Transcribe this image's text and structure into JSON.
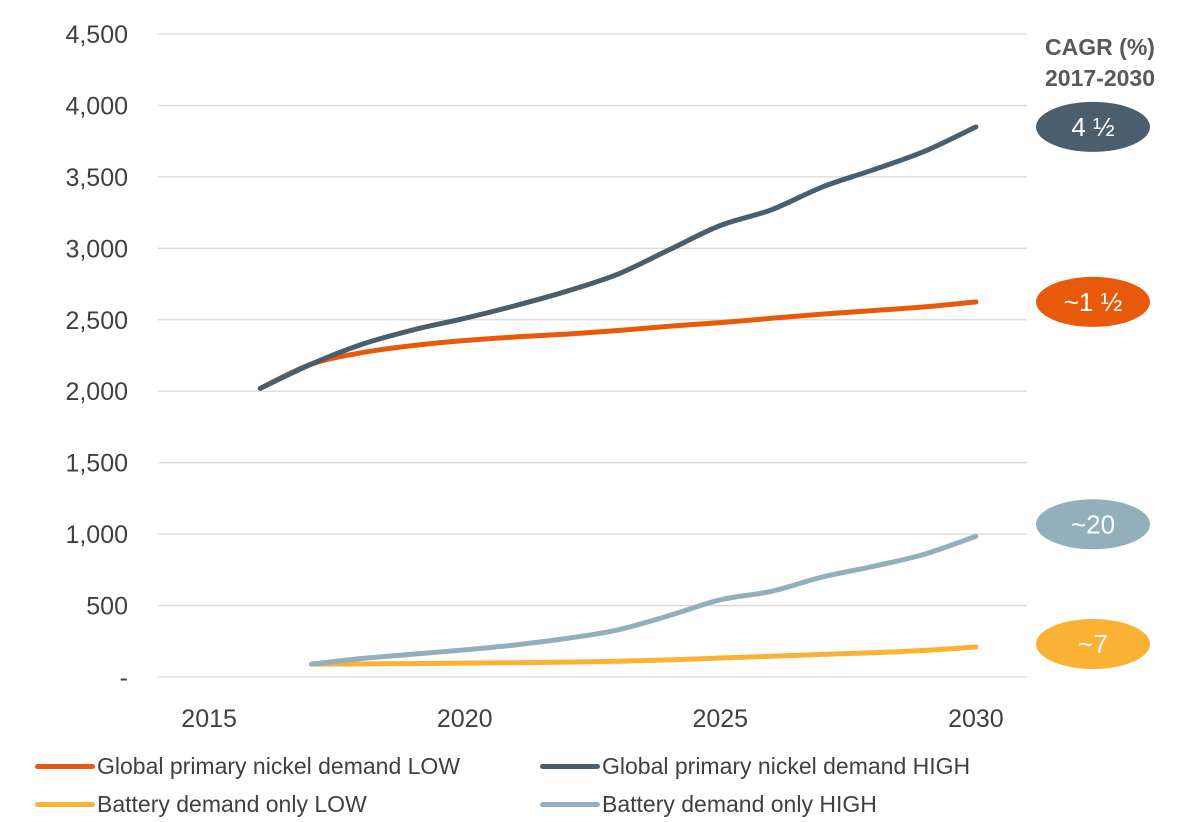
{
  "chart_data": {
    "type": "line",
    "xlim": [
      2014,
      2031
    ],
    "ylim": [
      0,
      4500
    ],
    "x_ticks": [
      "2015",
      "2020",
      "2025",
      "2030"
    ],
    "y_ticks": [
      "-",
      "500",
      "1,000",
      "1,500",
      "2,000",
      "2,500",
      "3,000",
      "3,500",
      "4,000",
      "4,500"
    ],
    "grid": true,
    "legend_position": "bottom",
    "cagr_title": [
      "CAGR (%)",
      "2017-2030"
    ],
    "series": [
      {
        "name": "Global primary nickel demand LOW",
        "color": "#E8590C",
        "x": [
          2016,
          2017,
          2018,
          2019,
          2020,
          2021,
          2022,
          2023,
          2024,
          2025,
          2026,
          2027,
          2028,
          2029,
          2030
        ],
        "y": [
          2020,
          2190,
          2270,
          2320,
          2355,
          2380,
          2400,
          2425,
          2455,
          2480,
          2510,
          2540,
          2565,
          2590,
          2625
        ],
        "cagr": "~1 ½"
      },
      {
        "name": "Global primary nickel demand HIGH",
        "color": "#4A5E6D",
        "x": [
          2016,
          2017,
          2018,
          2019,
          2020,
          2021,
          2022,
          2023,
          2024,
          2025,
          2026,
          2027,
          2028,
          2029,
          2030
        ],
        "y": [
          2020,
          2190,
          2330,
          2430,
          2510,
          2600,
          2700,
          2820,
          2990,
          3160,
          3270,
          3430,
          3550,
          3680,
          3850
        ],
        "cagr": "4 ½"
      },
      {
        "name": "Battery demand only LOW",
        "color": "#F9B233",
        "x": [
          2017,
          2018,
          2019,
          2020,
          2021,
          2022,
          2023,
          2024,
          2025,
          2026,
          2027,
          2028,
          2029,
          2030
        ],
        "y": [
          90,
          92,
          94,
          97,
          100,
          104,
          110,
          120,
          133,
          145,
          158,
          170,
          186,
          210
        ],
        "cagr": "~7"
      },
      {
        "name": "Battery demand only HIGH",
        "color": "#93AFBC",
        "x": [
          2017,
          2018,
          2019,
          2020,
          2021,
          2022,
          2023,
          2024,
          2025,
          2026,
          2027,
          2028,
          2029,
          2030
        ],
        "y": [
          90,
          130,
          160,
          190,
          225,
          270,
          330,
          430,
          540,
          600,
          700,
          775,
          860,
          985
        ],
        "cagr": "~20"
      }
    ]
  }
}
